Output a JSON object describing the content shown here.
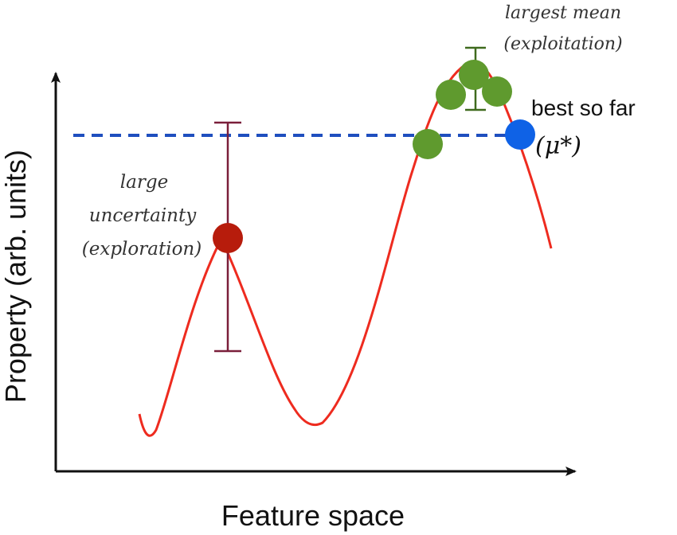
{
  "axes": {
    "xlabel": "Feature space",
    "ylabel": "Property (arb. units)"
  },
  "annotations": {
    "exploration": [
      "large",
      "uncertainty",
      "(exploration)"
    ],
    "exploitation": [
      "largest mean",
      "(exploitation)"
    ],
    "best_label": "best so far",
    "best_symbol": "μ*"
  },
  "colors": {
    "curve": "#ee2b1f",
    "baseline": "#1f4fbf",
    "exploration_point": "#b71c0c",
    "exploration_bar": "#7a1f3a",
    "exploitation_point": "#5f9a2e",
    "exploitation_bar": "#3f6a1e",
    "best_point": "#0f62e6",
    "axis": "#111111"
  }
}
